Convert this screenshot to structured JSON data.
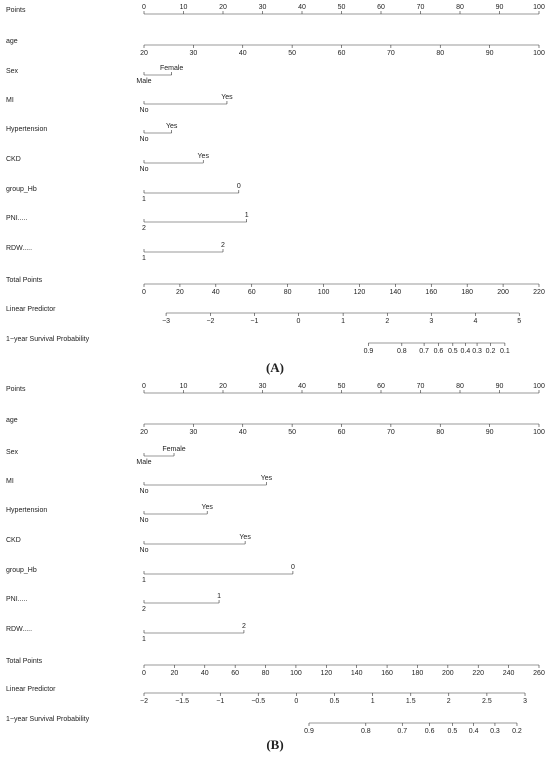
{
  "chart_data": [
    {
      "type": "nomogram",
      "title": "(A)",
      "points_lim": [
        0,
        100
      ],
      "total_lim": [
        0,
        220
      ],
      "rows": [
        {
          "label": "Points",
          "ticks": [
            0,
            10,
            20,
            30,
            40,
            50,
            60,
            70,
            80,
            90,
            100
          ],
          "tick_labels": "above"
        },
        {
          "label": "age",
          "ticks": [
            20,
            30,
            40,
            50,
            60,
            70,
            80,
            90,
            100
          ],
          "points": [
            0,
            12.5,
            25,
            37.5,
            50,
            62.5,
            75,
            87.5,
            100
          ]
        },
        {
          "label": "Sex",
          "levels": [
            {
              "label": "Male",
              "points": 0
            },
            {
              "label": "Female",
              "points": 7
            }
          ]
        },
        {
          "label": "MI",
          "levels": [
            {
              "label": "No",
              "points": 0
            },
            {
              "label": "Yes",
              "points": 21
            }
          ]
        },
        {
          "label": "Hypertension",
          "levels": [
            {
              "label": "No",
              "points": 0
            },
            {
              "label": "Yes",
              "points": 7
            }
          ]
        },
        {
          "label": "CKD",
          "levels": [
            {
              "label": "No",
              "points": 0
            },
            {
              "label": "Yes",
              "points": 15
            }
          ]
        },
        {
          "label": "group_Hb",
          "levels": [
            {
              "label": "1",
              "points": 0
            },
            {
              "label": "0",
              "points": 24
            }
          ]
        },
        {
          "label": "PNI.....",
          "levels": [
            {
              "label": "2",
              "points": 0
            },
            {
              "label": "1",
              "points": 26
            }
          ]
        },
        {
          "label": "RDW.....",
          "levels": [
            {
              "label": "1",
              "points": 0
            },
            {
              "label": "2",
              "points": 20
            }
          ]
        },
        {
          "label": "Total Points",
          "scale": "total",
          "ticks": [
            0,
            20,
            40,
            60,
            80,
            100,
            120,
            140,
            160,
            180,
            200,
            220
          ]
        },
        {
          "label": "Linear Predictor",
          "ticks": [
            {
              "value": -3,
              "label": "−3"
            },
            {
              "value": -2,
              "label": "−2"
            },
            {
              "value": -1,
              "label": "−1"
            },
            0,
            1,
            2,
            3,
            4,
            5
          ],
          "total": [
            12.3,
            37,
            61.5,
            86,
            110.9,
            135.5,
            160,
            184.6,
            209
          ]
        },
        {
          "label": "1−year Survival Probability",
          "ticks": [
            0.9,
            0.8,
            0.7,
            0.6,
            0.5,
            0.4,
            0.3,
            0.2,
            0.1
          ],
          "total": [
            125,
            143.6,
            156,
            164,
            172,
            179,
            185.5,
            193,
            201
          ]
        }
      ]
    },
    {
      "type": "nomogram",
      "title": "(B)",
      "points_lim": [
        0,
        100
      ],
      "total_lim": [
        0,
        260
      ],
      "rows": [
        {
          "label": "Points",
          "ticks": [
            0,
            10,
            20,
            30,
            40,
            50,
            60,
            70,
            80,
            90,
            100
          ],
          "tick_labels": "above"
        },
        {
          "label": "age",
          "ticks": [
            20,
            30,
            40,
            50,
            60,
            70,
            80,
            90,
            100
          ],
          "points": [
            0,
            12.5,
            25,
            37.5,
            50,
            62.5,
            75,
            87.5,
            100
          ]
        },
        {
          "label": "Sex",
          "levels": [
            {
              "label": "Male",
              "points": 0
            },
            {
              "label": "Female",
              "points": 7.6
            }
          ]
        },
        {
          "label": "MI",
          "levels": [
            {
              "label": "No",
              "points": 0
            },
            {
              "label": "Yes",
              "points": 31
            }
          ]
        },
        {
          "label": "Hypertension",
          "levels": [
            {
              "label": "No",
              "points": 0
            },
            {
              "label": "Yes",
              "points": 16
            }
          ]
        },
        {
          "label": "CKD",
          "levels": [
            {
              "label": "No",
              "points": 0
            },
            {
              "label": "Yes",
              "points": 25.6
            }
          ]
        },
        {
          "label": "group_Hb",
          "levels": [
            {
              "label": "1",
              "points": 0
            },
            {
              "label": "0",
              "points": 37.7
            }
          ]
        },
        {
          "label": "PNI.....",
          "levels": [
            {
              "label": "2",
              "points": 0
            },
            {
              "label": "1",
              "points": 19
            }
          ]
        },
        {
          "label": "RDW.....",
          "levels": [
            {
              "label": "1",
              "points": 0
            },
            {
              "label": "2",
              "points": 25.3
            }
          ]
        },
        {
          "label": "Total Points",
          "scale": "total",
          "ticks": [
            0,
            20,
            40,
            60,
            80,
            100,
            120,
            140,
            160,
            180,
            200,
            220,
            240,
            260
          ]
        },
        {
          "label": "Linear Predictor",
          "ticks": [
            {
              "value": -2,
              "label": "−2"
            },
            {
              "value": -1.5,
              "label": "−1.5"
            },
            {
              "value": -1,
              "label": "−1"
            },
            {
              "value": -0.5,
              "label": "−0.5"
            },
            0,
            0.5,
            1,
            1.5,
            2,
            2.5,
            3
          ],
          "total": [
            0,
            25.1,
            50.2,
            75.2,
            100.3,
            125.4,
            150.5,
            175.6,
            200.6,
            225.7,
            250.8
          ]
        },
        {
          "label": "1−year Survival Probability",
          "ticks": [
            0.9,
            0.8,
            0.7,
            0.6,
            0.5,
            0.4,
            0.3,
            0.2
          ],
          "total": [
            108.6,
            146,
            170,
            188,
            203,
            217,
            231,
            245.5
          ]
        }
      ]
    }
  ]
}
